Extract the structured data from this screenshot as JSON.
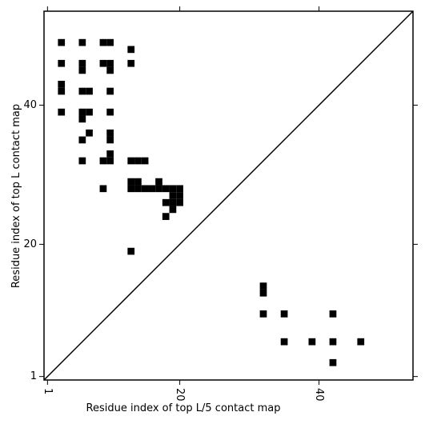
{
  "chart_data": {
    "type": "contact_map",
    "xlabel": "Residue index of top L/5 contact map",
    "ylabel": "Residue index of top L contact map",
    "xlim": [
      0.5,
      53.5
    ],
    "ylim": [
      0.5,
      53.5
    ],
    "xticks": [
      1,
      20,
      40
    ],
    "yticks": [
      1,
      20,
      40
    ],
    "series": [
      {
        "color": "#000000",
        "x": [
          3,
          6,
          9,
          10,
          13,
          3,
          6,
          6,
          9,
          10,
          10,
          13,
          3,
          3,
          6,
          7,
          10,
          3,
          6,
          7,
          6,
          10,
          7,
          6,
          10,
          10,
          10,
          6,
          9,
          10,
          13,
          14,
          15,
          9,
          13,
          14,
          17,
          13,
          14,
          15,
          16,
          17,
          18,
          19,
          20,
          19,
          20,
          18,
          19,
          20,
          19,
          18,
          13
        ],
        "y": [
          49,
          49,
          49,
          49,
          48,
          46,
          46,
          45,
          46,
          46,
          45,
          46,
          43,
          42,
          42,
          42,
          42,
          39,
          39,
          39,
          38,
          39,
          36,
          35,
          36,
          35,
          33,
          32,
          32,
          32,
          32,
          32,
          32,
          28,
          29,
          29,
          29,
          28,
          28,
          28,
          28,
          28,
          28,
          28,
          28,
          27,
          27,
          26,
          26,
          26,
          25,
          24,
          19
        ]
      },
      {
        "color": "#000000",
        "x": [
          32,
          32,
          32,
          35,
          42,
          35,
          39,
          42,
          46,
          42
        ],
        "y": [
          14,
          13,
          10,
          10,
          10,
          6,
          6,
          6,
          6,
          3
        ]
      }
    ]
  }
}
